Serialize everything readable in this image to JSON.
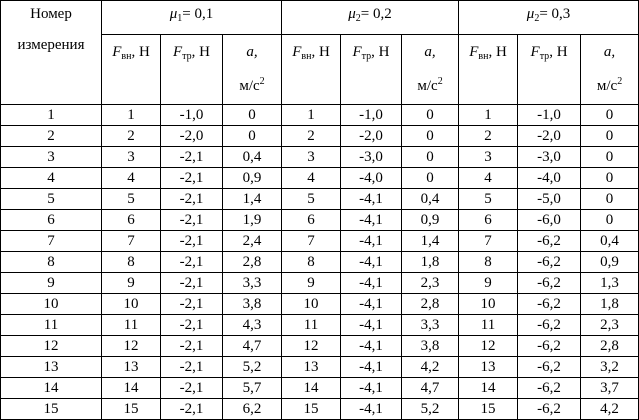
{
  "header": {
    "row_label": [
      "Номер",
      "измерения"
    ],
    "groups": [
      {
        "symbol": "μ",
        "subscript": "1",
        "value": "= 0,1"
      },
      {
        "symbol": "μ",
        "subscript": "2",
        "value": "= 0,2"
      },
      {
        "symbol": "μ",
        "subscript": "2",
        "value": "= 0,3"
      }
    ],
    "columns": {
      "force": {
        "symbol": "F",
        "subscript": "вн",
        "unit": ", Н"
      },
      "friction": {
        "symbol": "F",
        "subscript": "тр",
        "unit": ", Н"
      },
      "acceleration": {
        "symbol": "a,",
        "unit": "м/с",
        "power": "2"
      }
    }
  },
  "table": {
    "rows": [
      [
        "1",
        "1",
        "-1,0",
        "0",
        "1",
        "-1,0",
        "0",
        "1",
        "-1,0",
        "0"
      ],
      [
        "2",
        "2",
        "-2,0",
        "0",
        "2",
        "-2,0",
        "0",
        "2",
        "-2,0",
        "0"
      ],
      [
        "3",
        "3",
        "-2,1",
        "0,4",
        "3",
        "-3,0",
        "0",
        "3",
        "-3,0",
        "0"
      ],
      [
        "4",
        "4",
        "-2,1",
        "0,9",
        "4",
        "-4,0",
        "0",
        "4",
        "-4,0",
        "0"
      ],
      [
        "5",
        "5",
        "-2,1",
        "1,4",
        "5",
        "-4,1",
        "0,4",
        "5",
        "-5,0",
        "0"
      ],
      [
        "6",
        "6",
        "-2,1",
        "1,9",
        "6",
        "-4,1",
        "0,9",
        "6",
        "-6,0",
        "0"
      ],
      [
        "7",
        "7",
        "-2,1",
        "2,4",
        "7",
        "-4,1",
        "1,4",
        "7",
        "-6,2",
        "0,4"
      ],
      [
        "8",
        "8",
        "-2,1",
        "2,8",
        "8",
        "-4,1",
        "1,8",
        "8",
        "-6,2",
        "0,9"
      ],
      [
        "9",
        "9",
        "-2,1",
        "3,3",
        "9",
        "-4,1",
        "2,3",
        "9",
        "-6,2",
        "1,3"
      ],
      [
        "10",
        "10",
        "-2,1",
        "3,8",
        "10",
        "-4,1",
        "2,8",
        "10",
        "-6,2",
        "1,8"
      ],
      [
        "11",
        "11",
        "-2,1",
        "4,3",
        "11",
        "-4,1",
        "3,3",
        "11",
        "-6,2",
        "2,3"
      ],
      [
        "12",
        "12",
        "-2,1",
        "4,7",
        "12",
        "-4,1",
        "3,8",
        "12",
        "-6,2",
        "2,8"
      ],
      [
        "13",
        "13",
        "-2,1",
        "5,2",
        "13",
        "-4,1",
        "4,2",
        "13",
        "-6,2",
        "3,2"
      ],
      [
        "14",
        "14",
        "-2,1",
        "5,7",
        "14",
        "-4,1",
        "4,7",
        "14",
        "-6,2",
        "3,7"
      ],
      [
        "15",
        "15",
        "-2,1",
        "6,2",
        "15",
        "-4,1",
        "5,2",
        "15",
        "-6,2",
        "4,2"
      ]
    ]
  }
}
